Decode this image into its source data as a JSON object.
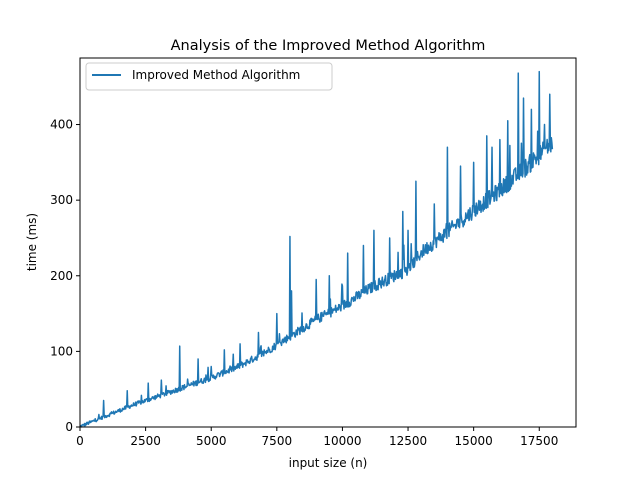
{
  "chart_data": {
    "type": "line",
    "title": "Analysis of the Improved Method Algorithm",
    "xlabel": "input size (n)",
    "ylabel": "time (ms)",
    "xlim": [
      0,
      18900
    ],
    "ylim": [
      0,
      488
    ],
    "xticks": [
      0,
      2500,
      5000,
      7500,
      10000,
      12500,
      15000,
      17500
    ],
    "yticks": [
      0,
      100,
      200,
      300,
      400
    ],
    "grid": false,
    "legend_position": "top-left",
    "series": [
      {
        "name": "Improved Method Algorithm",
        "color": "#1f77b4",
        "trend_x": [
          0,
          1000,
          2000,
          3000,
          4000,
          5000,
          6000,
          7000,
          8000,
          9000,
          10000,
          11000,
          12000,
          12500,
          13000,
          14000,
          15000,
          16000,
          17000,
          18000
        ],
        "trend_y": [
          0,
          14,
          28,
          40,
          52,
          64,
          78,
          96,
          118,
          140,
          158,
          180,
          198,
          205,
          228,
          255,
          283,
          310,
          340,
          372
        ],
        "spikes": [
          {
            "x": 900,
            "y": 35
          },
          {
            "x": 1800,
            "y": 48
          },
          {
            "x": 2600,
            "y": 58
          },
          {
            "x": 3100,
            "y": 62
          },
          {
            "x": 3800,
            "y": 107
          },
          {
            "x": 4500,
            "y": 90
          },
          {
            "x": 5000,
            "y": 80
          },
          {
            "x": 5500,
            "y": 102
          },
          {
            "x": 6100,
            "y": 110
          },
          {
            "x": 6800,
            "y": 125
          },
          {
            "x": 7500,
            "y": 150
          },
          {
            "x": 8000,
            "y": 252
          },
          {
            "x": 8050,
            "y": 180
          },
          {
            "x": 9000,
            "y": 195
          },
          {
            "x": 9500,
            "y": 200
          },
          {
            "x": 10200,
            "y": 230
          },
          {
            "x": 10800,
            "y": 240
          },
          {
            "x": 11200,
            "y": 260
          },
          {
            "x": 11800,
            "y": 250
          },
          {
            "x": 12300,
            "y": 285
          },
          {
            "x": 12500,
            "y": 260
          },
          {
            "x": 12800,
            "y": 325
          },
          {
            "x": 13500,
            "y": 295
          },
          {
            "x": 14000,
            "y": 370
          },
          {
            "x": 14500,
            "y": 345
          },
          {
            "x": 15000,
            "y": 350
          },
          {
            "x": 15500,
            "y": 385
          },
          {
            "x": 15700,
            "y": 370
          },
          {
            "x": 16000,
            "y": 380
          },
          {
            "x": 16300,
            "y": 405
          },
          {
            "x": 16700,
            "y": 468
          },
          {
            "x": 16900,
            "y": 435
          },
          {
            "x": 17200,
            "y": 420
          },
          {
            "x": 17500,
            "y": 470
          },
          {
            "x": 17700,
            "y": 400
          },
          {
            "x": 17900,
            "y": 440
          }
        ]
      }
    ]
  }
}
